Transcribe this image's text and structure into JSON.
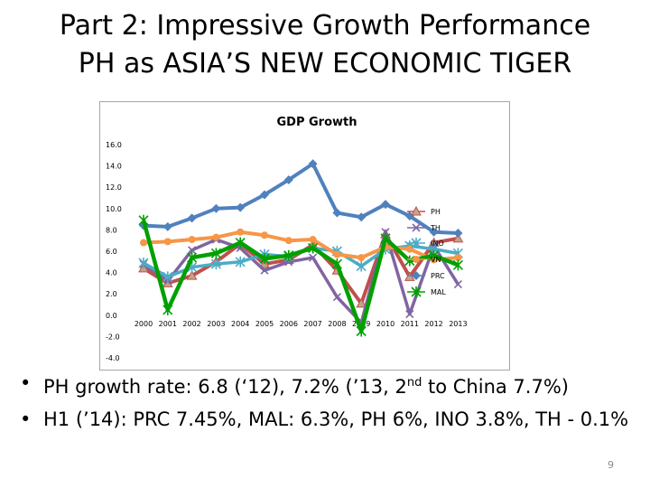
{
  "slide": {
    "title_line1": "Part 2: Impressive Growth Performance",
    "title_line2": "PH as ASIA’S NEW  ECONOMIC TIGER",
    "bullets": [
      {
        "pre": "PH growth rate: 6.8 (‘12), 7.2% (’13, 2",
        "sup": "nd",
        "post": " to China 7.7%)"
      },
      {
        "pre": "H1 (’14): PRC 7.45%, MAL: 6.3%, PH 6%, INO 3.8%, TH - 0.1%",
        "sup": "",
        "post": ""
      }
    ],
    "page_number": "9"
  },
  "chart_data": {
    "type": "line",
    "title": "GDP Growth",
    "xlabel": "",
    "ylabel": "",
    "categories": [
      "2000",
      "2001",
      "2002",
      "2003",
      "2004",
      "2005",
      "2006",
      "2007",
      "2008",
      "2009",
      "2010",
      "2011",
      "2012",
      "2013"
    ],
    "ylim": [
      -4,
      16
    ],
    "yticks": [
      "16.0",
      "14.0",
      "12.0",
      "10.0",
      "8.0",
      "6.0",
      "4.0",
      "2.0",
      "0.0",
      "-2.0",
      "-4.0"
    ],
    "ytick_values": [
      16,
      14,
      12,
      10,
      8,
      6,
      4,
      2,
      0,
      -2,
      -4
    ],
    "grid": false,
    "legend_position": "right",
    "series": [
      {
        "name": "PH",
        "color": "#c0504d",
        "values": [
          4.4,
          3.0,
          3.7,
          5.0,
          6.7,
          4.8,
          5.2,
          6.6,
          4.2,
          1.1,
          7.6,
          3.6,
          6.8,
          7.2
        ]
      },
      {
        "name": "TH",
        "color": "#8064a2",
        "values": [
          4.8,
          3.2,
          6.1,
          7.1,
          6.3,
          4.2,
          5.0,
          5.4,
          1.7,
          -0.7,
          7.8,
          0.1,
          6.5,
          2.9
        ]
      },
      {
        "name": "INO",
        "color": "#4bacc6",
        "values": [
          4.9,
          3.6,
          4.5,
          4.8,
          5.0,
          5.7,
          5.5,
          6.3,
          6.0,
          4.6,
          6.2,
          6.5,
          6.2,
          5.8
        ]
      },
      {
        "name": "VN",
        "color": "#f79646",
        "values": [
          6.8,
          6.9,
          7.1,
          7.3,
          7.8,
          7.5,
          7.0,
          7.1,
          5.7,
          5.4,
          6.4,
          6.2,
          5.2,
          5.4
        ]
      },
      {
        "name": "PRC",
        "color": "#4f81bd",
        "values": [
          8.4,
          8.3,
          9.1,
          10.0,
          10.1,
          11.3,
          12.7,
          14.2,
          9.6,
          9.2,
          10.4,
          9.3,
          7.8,
          7.7
        ]
      },
      {
        "name": "MAL",
        "color": "#00a000",
        "values": [
          8.9,
          0.5,
          5.4,
          5.8,
          6.8,
          5.3,
          5.6,
          6.3,
          4.8,
          -1.5,
          7.2,
          5.1,
          5.6,
          4.7
        ]
      }
    ]
  }
}
